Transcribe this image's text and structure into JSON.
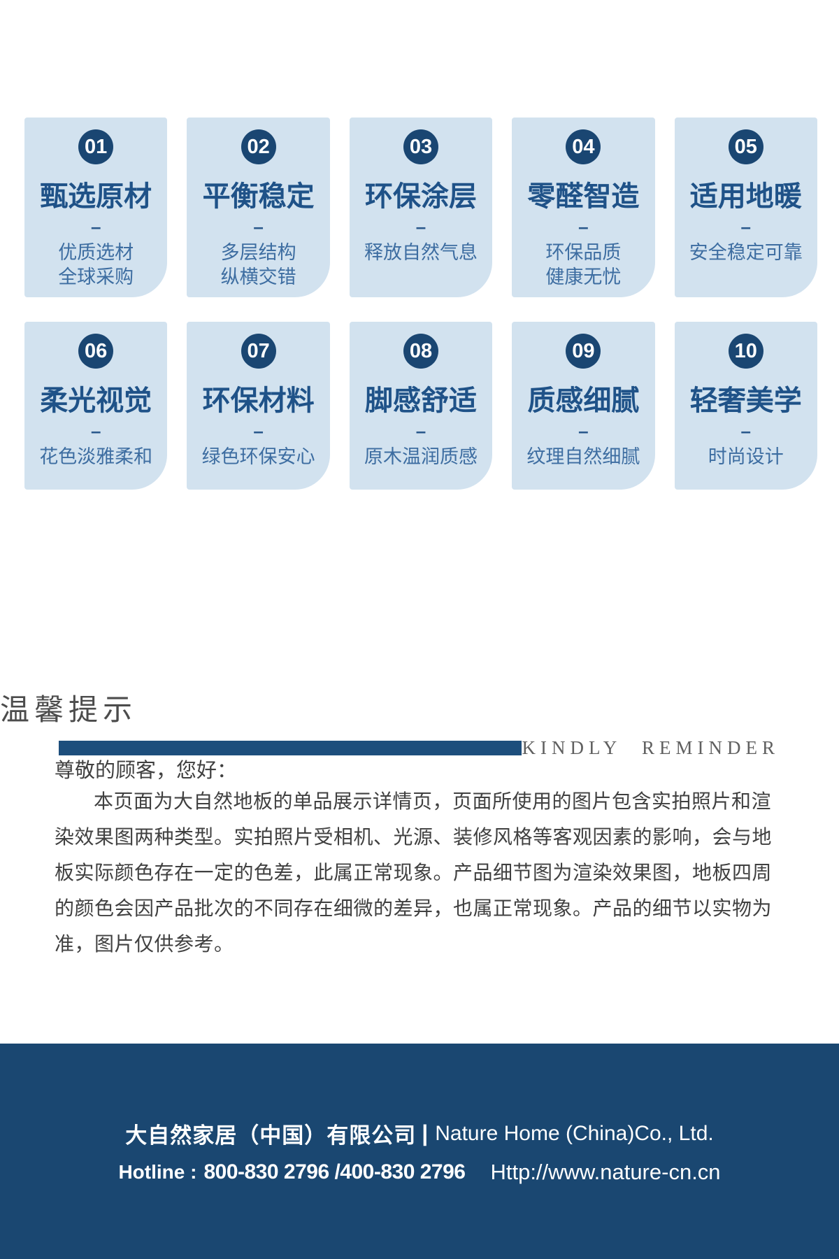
{
  "colors": {
    "card_bg": "#d2e2ef",
    "badge_circle": "#1a4672",
    "card_title": "#1f5288",
    "card_subtitle": "#3d6da1",
    "divider_bar": "#1d4e7c",
    "footer_bg": "#1a4771"
  },
  "features": {
    "dash": "–",
    "cards": [
      {
        "num": "01",
        "title": "甄选原材",
        "subtitle": "优质选材\n全球采购"
      },
      {
        "num": "02",
        "title": "平衡稳定",
        "subtitle": "多层结构\n纵横交错"
      },
      {
        "num": "03",
        "title": "环保涂层",
        "subtitle": "释放自然气息"
      },
      {
        "num": "04",
        "title": "零醛智造",
        "subtitle": "环保品质\n健康无忧"
      },
      {
        "num": "05",
        "title": "适用地暖",
        "subtitle": "安全稳定可靠"
      },
      {
        "num": "06",
        "title": "柔光视觉",
        "subtitle": "花色淡雅柔和"
      },
      {
        "num": "07",
        "title": "环保材料",
        "subtitle": "绿色环保安心"
      },
      {
        "num": "08",
        "title": "脚感舒适",
        "subtitle": "原木温润质感"
      },
      {
        "num": "09",
        "title": "质感细腻",
        "subtitle": "纹理自然细腻"
      },
      {
        "num": "10",
        "title": "轻奢美学",
        "subtitle": "时尚设计"
      }
    ]
  },
  "reminder": {
    "heading_cn": "温馨提示",
    "heading_en": "KINDLY REMINDER",
    "greeting": "尊敬的顾客，您好：",
    "paragraph": "本页面为大自然地板的单品展示详情页，页面所使用的图片包含实拍照片和渲染效果图两种类型。实拍照片受相机、光源、装修风格等客观因素的影响，会与地板实际颜色存在一定的色差，此属正常现象。产品细节图为渲染效果图，地板四周的颜色会因产品批次的不同存在细微的差异，也属正常现象。产品的细节以实物为准，图片仅供参考。"
  },
  "footer": {
    "company_cn": "大自然家居（中国）有限公司",
    "separator": "|",
    "company_en": "Nature Home (China)Co., Ltd.",
    "hotline_label": "Hotline :",
    "hotline_numbers": "800-830 2796 /400-830 2796",
    "website": "Http://www.nature-cn.cn"
  }
}
